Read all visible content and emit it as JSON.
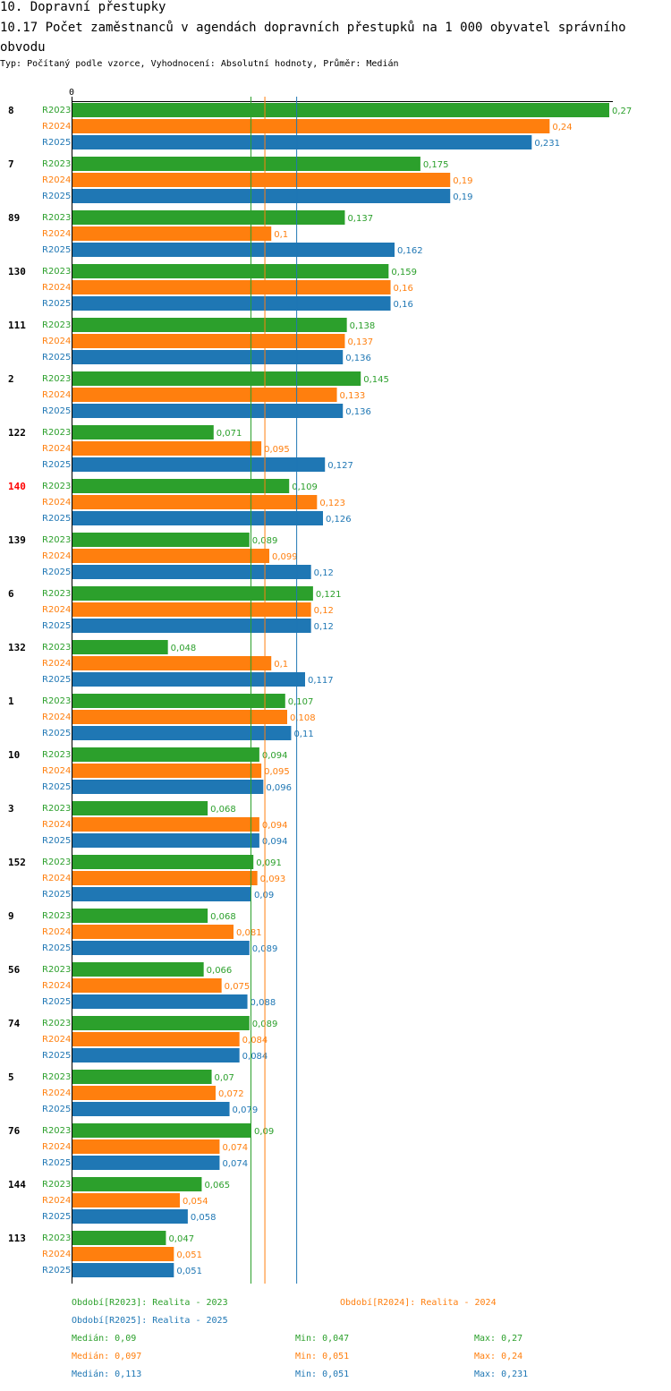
{
  "header": {
    "title": "10. Dopravní přestupky",
    "subtitle": "10.17 Počet zaměstnanců v agendách dopravních přestupků na 1 000 obyvatel správního obvodu",
    "meta": "Typ: Počítaný podle vzorce, Vyhodnocení: Absolutní hodnoty, Průměr: Medián"
  },
  "colors": {
    "R2023": "#2ca02c",
    "R2024": "#ff7f0e",
    "R2025": "#1f77b4",
    "highlight": "#ff0000"
  },
  "chart_data": {
    "type": "bar",
    "orientation": "horizontal",
    "axis_zero_label": "0",
    "xlim": [
      0,
      0.27
    ],
    "categories": [
      "8",
      "7",
      "89",
      "130",
      "111",
      "2",
      "122",
      "140",
      "139",
      "6",
      "132",
      "1",
      "10",
      "3",
      "152",
      "9",
      "56",
      "74",
      "5",
      "76",
      "144",
      "113"
    ],
    "highlight_category": "140",
    "series": [
      {
        "name": "R2023",
        "label": "Období[R2023]: Realita - 2023",
        "values": [
          0.27,
          0.175,
          0.137,
          0.159,
          0.138,
          0.145,
          0.071,
          0.109,
          0.089,
          0.121,
          0.048,
          0.107,
          0.094,
          0.068,
          0.091,
          0.068,
          0.066,
          0.089,
          0.07,
          0.09,
          0.065,
          0.047
        ],
        "value_labels": [
          "0,27",
          "0,175",
          "0,137",
          "0,159",
          "0,138",
          "0,145",
          "0,071",
          "0,109",
          "0,089",
          "0,121",
          "0,048",
          "0,107",
          "0,094",
          "0,068",
          "0,091",
          "0,068",
          "0,066",
          "0,089",
          "0,07",
          "0,09",
          "0,065",
          "0,047"
        ],
        "median": 0.09,
        "median_label": "Medián: 0,09",
        "min_label": "Min: 0,047",
        "max_label": "Max: 0,27"
      },
      {
        "name": "R2024",
        "label": "Období[R2024]: Realita - 2024",
        "values": [
          0.24,
          0.19,
          0.1,
          0.16,
          0.137,
          0.133,
          0.095,
          0.123,
          0.099,
          0.12,
          0.1,
          0.108,
          0.095,
          0.094,
          0.093,
          0.081,
          0.075,
          0.084,
          0.072,
          0.074,
          0.054,
          0.051
        ],
        "value_labels": [
          "0,24",
          "0,19",
          "0,1",
          "0,16",
          "0,137",
          "0,133",
          "0,095",
          "0,123",
          "0,099",
          "0,12",
          "0,1",
          "0,108",
          "0,095",
          "0,094",
          "0,093",
          "0,081",
          "0,075",
          "0,084",
          "0,072",
          "0,074",
          "0,054",
          "0,051"
        ],
        "median": 0.097,
        "median_label": "Medián: 0,097",
        "min_label": "Min: 0,051",
        "max_label": "Max: 0,24"
      },
      {
        "name": "R2025",
        "label": "Období[R2025]: Realita - 2025",
        "values": [
          0.231,
          0.19,
          0.162,
          0.16,
          0.136,
          0.136,
          0.127,
          0.126,
          0.12,
          0.12,
          0.117,
          0.11,
          0.096,
          0.094,
          0.09,
          0.089,
          0.088,
          0.084,
          0.079,
          0.074,
          0.058,
          0.051
        ],
        "value_labels": [
          "0,231",
          "0,19",
          "0,162",
          "0,16",
          "0,136",
          "0,136",
          "0,127",
          "0,126",
          "0,12",
          "0,12",
          "0,117",
          "0,11",
          "0,096",
          "0,094",
          "0,09",
          "0,089",
          "0,088",
          "0,084",
          "0,079",
          "0,074",
          "0,058",
          "0,051"
        ],
        "median": 0.113,
        "median_label": "Medián: 0,113",
        "min_label": "Min: 0,051",
        "max_label": "Max: 0,231"
      }
    ]
  }
}
